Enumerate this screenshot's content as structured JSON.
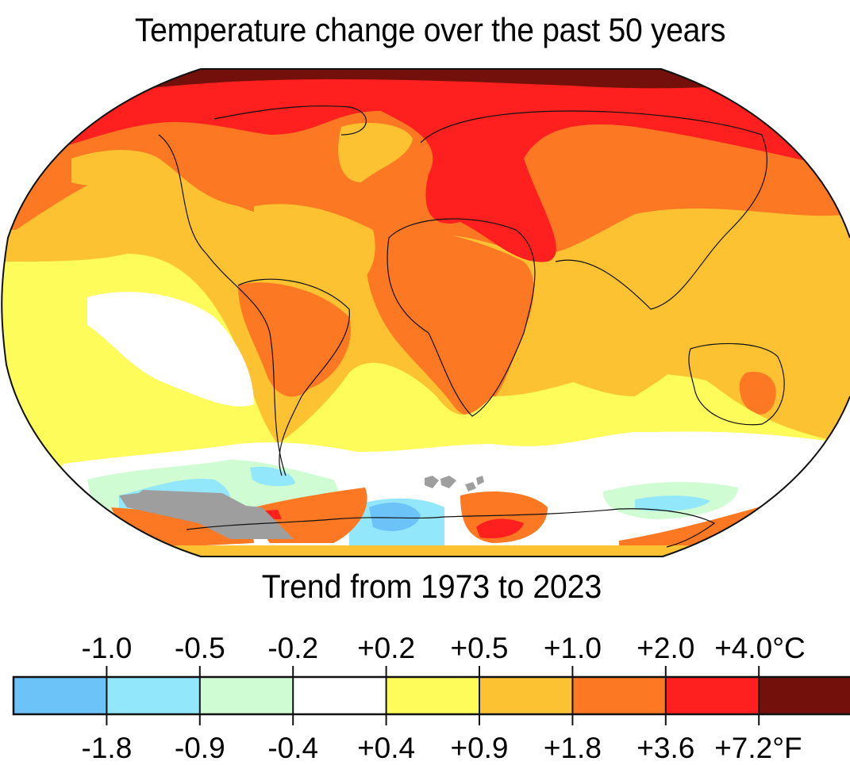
{
  "title": "Temperature change over the past 50 years",
  "subtitle": "Trend from 1973 to 2023",
  "legend": {
    "celsius_ticks": [
      "-1.0",
      "-0.5",
      "-0.2",
      "+0.2",
      "+0.5",
      "+1.0",
      "+2.0",
      "+4.0°C"
    ],
    "fahrenheit_ticks": [
      "-1.8",
      "-0.9",
      "-0.4",
      "+0.4",
      "+0.9",
      "+1.8",
      "+3.6",
      "+7.2°F"
    ],
    "bins": [
      {
        "range_c": "< -1.0",
        "color": "#6cc3f8"
      },
      {
        "range_c": "-1.0 to -0.5",
        "color": "#93e7fb"
      },
      {
        "range_c": "-0.5 to -0.2",
        "color": "#cffcd3"
      },
      {
        "range_c": "-0.2 to +0.2",
        "color": "#ffffff"
      },
      {
        "range_c": "+0.2 to +0.5",
        "color": "#fdfc5a"
      },
      {
        "range_c": "+0.5 to +1.0",
        "color": "#fcc232"
      },
      {
        "range_c": "+1.0 to +2.0",
        "color": "#fc7823"
      },
      {
        "range_c": "+2.0 to +4.0",
        "color": "#fd201e"
      },
      {
        "range_c": "> +4.0",
        "color": "#73100b"
      }
    ],
    "no_data_color": "#9e9e9e"
  }
}
